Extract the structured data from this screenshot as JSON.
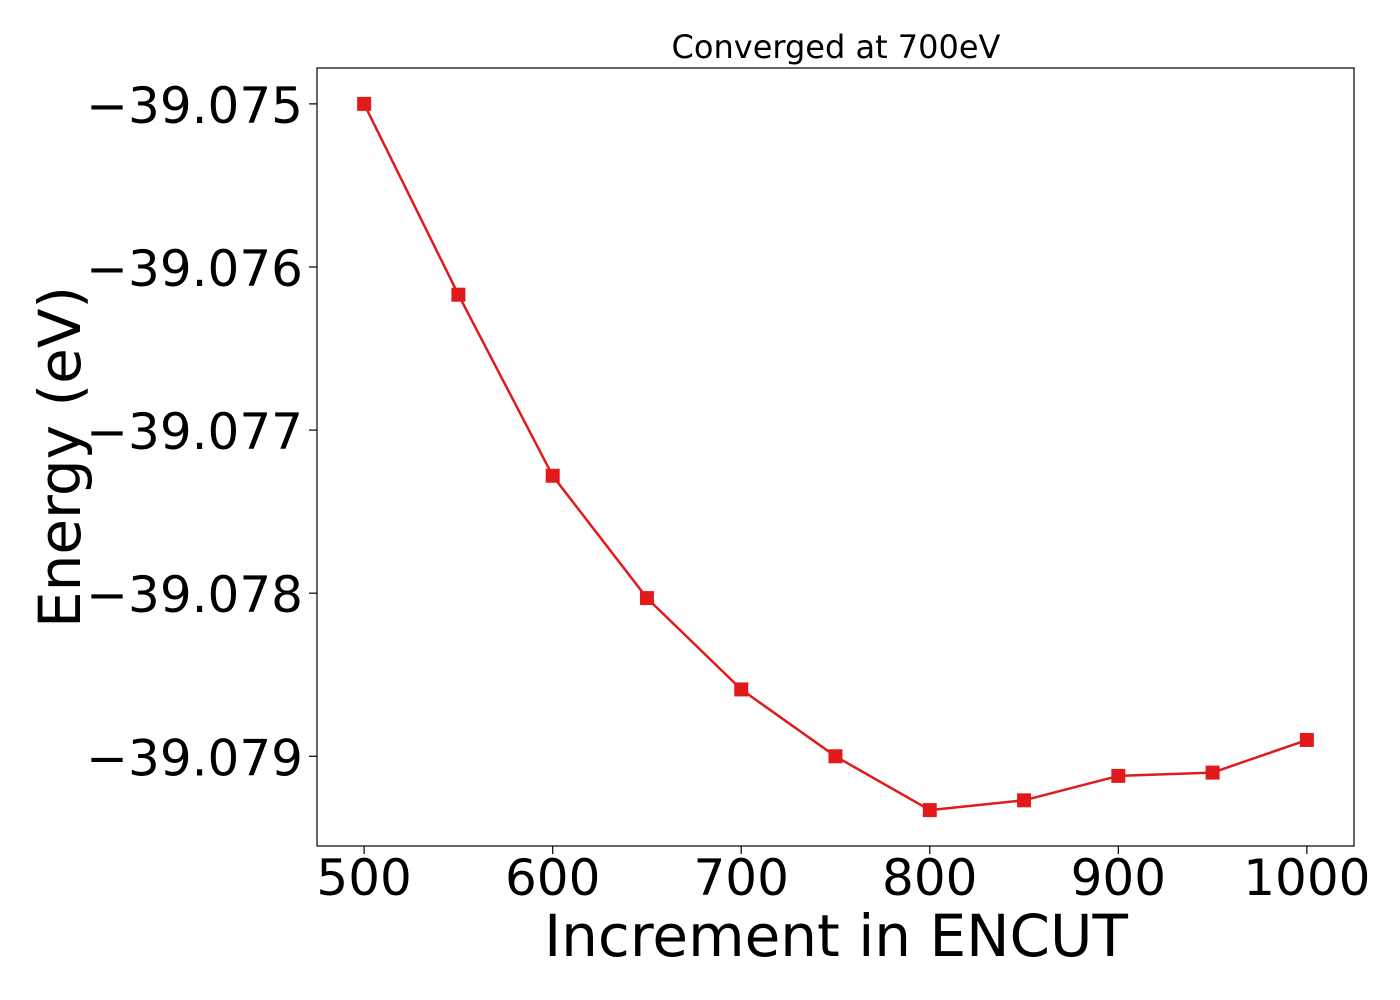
{
  "chart_data": {
    "type": "line",
    "title": "Converged at 700eV",
    "xlabel": "Increment in ENCUT",
    "ylabel": "Energy (eV)",
    "x": [
      500,
      550,
      600,
      650,
      700,
      750,
      800,
      850,
      900,
      950,
      1000
    ],
    "series": [
      {
        "values": [
          -39.075,
          -39.07617,
          -39.07728,
          -39.07803,
          -39.07859,
          -39.079,
          -39.07933,
          -39.07927,
          -39.07912,
          -39.0791,
          -39.0789
        ],
        "color": "#e31a1c",
        "marker": "square"
      }
    ],
    "xticks": [
      500,
      600,
      700,
      800,
      900,
      1000
    ],
    "xtick_labels": [
      "500",
      "600",
      "700",
      "800",
      "900",
      "1000"
    ],
    "yticks": [
      -39.075,
      -39.076,
      -39.077,
      -39.078,
      -39.079
    ],
    "ytick_labels": [
      "−39.075",
      "−39.076",
      "−39.077",
      "−39.078",
      "−39.079"
    ],
    "xlim": [
      475,
      1025
    ],
    "ylim": [
      -39.07955,
      -39.07478
    ],
    "grid": false,
    "legend": "none"
  }
}
